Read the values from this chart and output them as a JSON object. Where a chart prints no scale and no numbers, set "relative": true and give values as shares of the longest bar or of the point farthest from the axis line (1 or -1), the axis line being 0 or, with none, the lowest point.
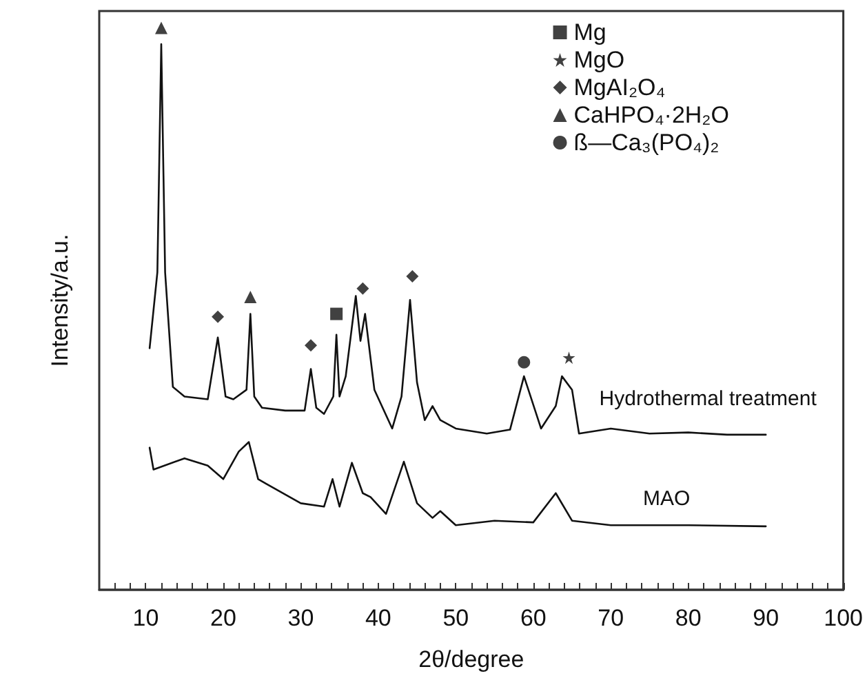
{
  "chart_data": {
    "type": "line",
    "xlabel": "2θ/degree",
    "ylabel": "Intensity/a.u.",
    "relative": true,
    "xlim": [
      4,
      100
    ],
    "xticks": [
      10,
      20,
      30,
      40,
      50,
      60,
      70,
      80,
      90,
      100,
      {
        "value": 6,
        "label": null
      },
      {
        "value": 8,
        "label": null
      },
      {
        "value": 12,
        "label": null
      },
      {
        "value": 14,
        "label": null
      },
      {
        "value": 16,
        "label": null
      },
      {
        "value": 18,
        "label": null
      },
      {
        "value": 22,
        "label": null
      },
      {
        "value": 24,
        "label": null
      },
      {
        "value": 26,
        "label": null
      },
      {
        "value": 28,
        "label": null
      },
      {
        "value": 32,
        "label": null
      },
      {
        "value": 34,
        "label": null
      },
      {
        "value": 36,
        "label": null
      },
      {
        "value": 38,
        "label": null
      },
      {
        "value": 42,
        "label": null
      },
      {
        "value": 44,
        "label": null
      },
      {
        "value": 46,
        "label": null
      },
      {
        "value": 48,
        "label": null
      },
      {
        "value": 52,
        "label": null
      },
      {
        "value": 54,
        "label": null
      },
      {
        "value": 56,
        "label": null
      },
      {
        "value": 58,
        "label": null
      },
      {
        "value": 62,
        "label": null
      },
      {
        "value": 64,
        "label": null
      },
      {
        "value": 66,
        "label": null
      },
      {
        "value": 68,
        "label": null
      },
      {
        "value": 72,
        "label": null
      },
      {
        "value": 74,
        "label": null
      },
      {
        "value": 76,
        "label": null
      },
      {
        "value": 78,
        "label": null
      },
      {
        "value": 82,
        "label": null
      },
      {
        "value": 84,
        "label": null
      },
      {
        "value": 86,
        "label": null
      },
      {
        "value": 88,
        "label": null
      },
      {
        "value": 92,
        "label": null
      },
      {
        "value": 94,
        "label": null
      },
      {
        "value": 96,
        "label": null
      },
      {
        "value": 98,
        "label": null
      }
    ],
    "legend": "top right",
    "grid": false,
    "series": [
      {
        "name": "Hydrothermal treatment",
        "color": "#111111",
        "x": [
          10.5,
          11.5,
          12,
          12.5,
          13.5,
          15,
          18,
          19.3,
          20.3,
          21.3,
          23,
          23.5,
          24,
          25,
          28,
          30.5,
          31.3,
          32,
          33,
          34.2,
          34.6,
          35,
          35.8,
          37.1,
          37.7,
          38.3,
          39.5,
          41.8,
          43,
          44.1,
          45,
          46,
          47,
          48,
          50,
          54,
          57,
          58.8,
          61,
          62.9,
          63.7,
          65,
          65.9,
          70,
          75,
          80,
          85,
          90
        ],
        "values": [
          0.43,
          0.565,
          0.971,
          0.565,
          0.361,
          0.344,
          0.339,
          0.449,
          0.344,
          0.339,
          0.356,
          0.491,
          0.344,
          0.324,
          0.319,
          0.319,
          0.393,
          0.324,
          0.313,
          0.344,
          0.454,
          0.344,
          0.38,
          0.523,
          0.443,
          0.491,
          0.356,
          0.287,
          0.344,
          0.516,
          0.369,
          0.302,
          0.327,
          0.302,
          0.287,
          0.278,
          0.285,
          0.38,
          0.287,
          0.327,
          0.38,
          0.356,
          0.278,
          0.287,
          0.278,
          0.28,
          0.276,
          0.276
        ]
      },
      {
        "name": "MAO",
        "color": "#111111",
        "x": [
          10.5,
          11,
          15,
          18,
          20,
          22,
          23.3,
          24.5,
          25.5,
          30,
          33,
          34.1,
          35,
          36.6,
          38,
          39,
          41,
          43.3,
          45,
          47,
          48,
          50,
          55,
          60,
          62.9,
          65,
          70,
          80,
          90
        ],
        "values": [
          0.253,
          0.214,
          0.234,
          0.221,
          0.197,
          0.246,
          0.263,
          0.197,
          0.189,
          0.154,
          0.148,
          0.197,
          0.148,
          0.226,
          0.172,
          0.165,
          0.135,
          0.228,
          0.154,
          0.128,
          0.14,
          0.115,
          0.123,
          0.12,
          0.172,
          0.123,
          0.115,
          0.115,
          0.113
        ]
      },
      {
        "name": "Mg",
        "type": "scatter",
        "marker": "square",
        "color": "#111111",
        "x": [
          34.6
        ],
        "values": [
          0.491
        ]
      },
      {
        "name": "MgO",
        "type": "scatter",
        "marker": "star",
        "color": "#111111",
        "x": [
          64.6
        ],
        "values": [
          0.413
        ]
      },
      {
        "name": "MgAI₂O₄",
        "type": "scatter",
        "marker": "diamond",
        "color": "#111111",
        "x": [
          19.3,
          31.3,
          38,
          44.4
        ],
        "values": [
          0.486,
          0.435,
          0.536,
          0.558
        ]
      },
      {
        "name": "CaHPO₄·2H₂O",
        "type": "scatter",
        "marker": "triangle",
        "color": "#111111",
        "x": [
          12,
          23.5
        ],
        "values": [
          1.0,
          0.521
        ]
      },
      {
        "name": "ß—Ca₃(PO₄)₂",
        "type": "scatter",
        "marker": "circle",
        "color": "#111111",
        "x": [
          58.8
        ],
        "values": [
          0.405
        ]
      }
    ]
  }
}
